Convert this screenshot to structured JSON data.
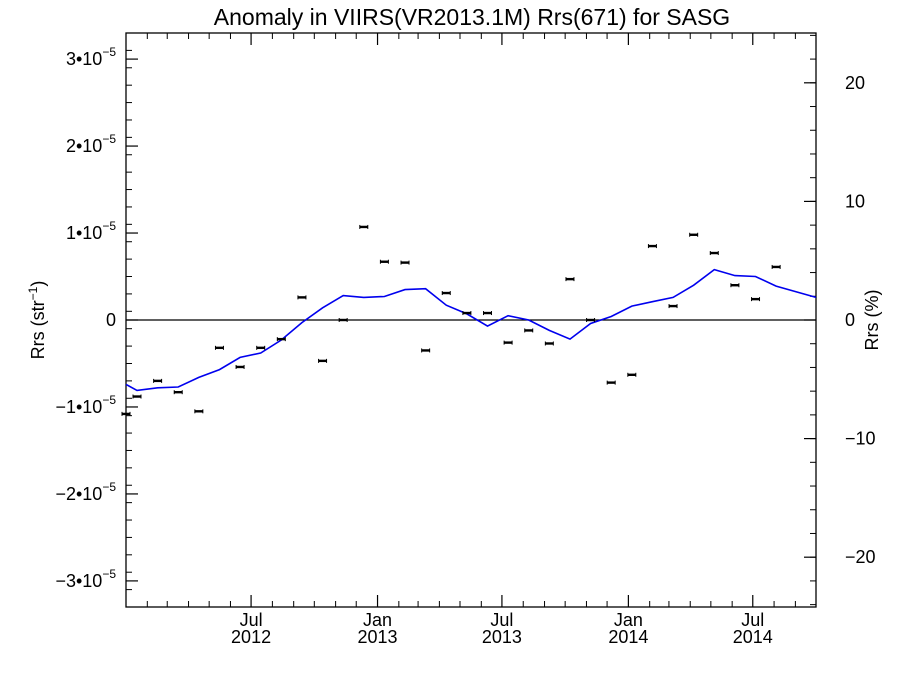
{
  "chart_data": {
    "type": "scatter",
    "title": "Anomaly in VIIRS(VR2013.1M) Rrs(671) for SASG",
    "ylabel_left": {
      "main": "Rrs (str",
      "sup": "−1",
      "close": ")"
    },
    "ylabel_right": "Rrs (%)",
    "xlim": [
      "2012-01-01",
      "2014-10-01"
    ],
    "ylim_left": [
      -3.3e-05,
      3.3e-05
    ],
    "ylim_right": [
      -24.2,
      24.2
    ],
    "x_ticks": [
      {
        "date": "2012-07-01",
        "month": "Jul",
        "year": "2012"
      },
      {
        "date": "2013-01-01",
        "month": "Jan",
        "year": "2013"
      },
      {
        "date": "2013-07-01",
        "month": "Jul",
        "year": "2013"
      },
      {
        "date": "2014-01-01",
        "month": "Jan",
        "year": "2014"
      },
      {
        "date": "2014-07-01",
        "month": "Jul",
        "year": "2014"
      }
    ],
    "x_minor_ticks": [
      "2012-02-01",
      "2012-03-01",
      "2012-04-01",
      "2012-05-01",
      "2012-06-01",
      "2012-08-01",
      "2012-09-01",
      "2012-10-01",
      "2012-11-01",
      "2012-12-01",
      "2013-02-01",
      "2013-03-01",
      "2013-04-01",
      "2013-05-01",
      "2013-06-01",
      "2013-08-01",
      "2013-09-01",
      "2013-10-01",
      "2013-11-01",
      "2013-12-01",
      "2014-02-01",
      "2014-03-01",
      "2014-04-01",
      "2014-05-01",
      "2014-06-01",
      "2014-08-01",
      "2014-09-01"
    ],
    "y_ticks_left": [
      {
        "value": 3e-05,
        "coef": "3•10",
        "exp": "−5"
      },
      {
        "value": 2e-05,
        "coef": "2•10",
        "exp": "−5"
      },
      {
        "value": 1e-05,
        "coef": "1•10",
        "exp": "−5"
      },
      {
        "value": 0,
        "coef": "0",
        "exp": ""
      },
      {
        "value": -1e-05,
        "coef": "−1•10",
        "exp": "−5"
      },
      {
        "value": -2e-05,
        "coef": "−2•10",
        "exp": "−5"
      },
      {
        "value": -3e-05,
        "coef": "−3•10",
        "exp": "−5"
      }
    ],
    "y_ticks_right": [
      {
        "value": 20,
        "label": "20"
      },
      {
        "value": 10,
        "label": "10"
      },
      {
        "value": 0,
        "label": "0"
      },
      {
        "value": -10,
        "label": "−10"
      },
      {
        "value": -20,
        "label": "−20"
      }
    ],
    "zero_line": 0,
    "grid": false,
    "legend": "none",
    "colors": {
      "points": "#000000",
      "trend": "#0000ee",
      "axes": "#000000",
      "zero_line": "#000000"
    },
    "series": [
      {
        "type": "scatter_errorbar",
        "points": [
          {
            "x": "2012-01-01",
            "y": -1.08e-05
          },
          {
            "x": "2012-01-17",
            "y": -8.8e-06
          },
          {
            "x": "2012-02-16",
            "y": -7e-06
          },
          {
            "x": "2012-03-17",
            "y": -8.3e-06
          },
          {
            "x": "2012-04-16",
            "y": -1.05e-05
          },
          {
            "x": "2012-05-16",
            "y": -3.2e-06
          },
          {
            "x": "2012-06-15",
            "y": -5.4e-06
          },
          {
            "x": "2012-07-15",
            "y": -3.2e-06
          },
          {
            "x": "2012-08-14",
            "y": -2.2e-06
          },
          {
            "x": "2012-09-13",
            "y": 2.6e-06
          },
          {
            "x": "2012-10-13",
            "y": -4.7e-06
          },
          {
            "x": "2012-11-12",
            "y": 0.0
          },
          {
            "x": "2012-12-12",
            "y": 1.07e-05
          },
          {
            "x": "2013-01-11",
            "y": 6.7e-06
          },
          {
            "x": "2013-02-10",
            "y": 6.6e-06
          },
          {
            "x": "2013-03-12",
            "y": -3.5e-06
          },
          {
            "x": "2013-04-11",
            "y": 3.1e-06
          },
          {
            "x": "2013-05-11",
            "y": 8e-07
          },
          {
            "x": "2013-06-10",
            "y": 8e-07
          },
          {
            "x": "2013-07-10",
            "y": -2.6e-06
          },
          {
            "x": "2013-08-09",
            "y": -1.2e-06
          },
          {
            "x": "2013-09-08",
            "y": -2.7e-06
          },
          {
            "x": "2013-10-08",
            "y": 4.7e-06
          },
          {
            "x": "2013-11-07",
            "y": 0.0
          },
          {
            "x": "2013-12-07",
            "y": -7.2e-06
          },
          {
            "x": "2014-01-06",
            "y": -6.3e-06
          },
          {
            "x": "2014-02-05",
            "y": 8.5e-06
          },
          {
            "x": "2014-03-07",
            "y": 1.6e-06
          },
          {
            "x": "2014-04-06",
            "y": 9.8e-06
          },
          {
            "x": "2014-05-06",
            "y": 7.7e-06
          },
          {
            "x": "2014-06-05",
            "y": 4e-06
          },
          {
            "x": "2014-07-05",
            "y": 2.4e-06
          },
          {
            "x": "2014-08-04",
            "y": 6.1e-06
          }
        ]
      },
      {
        "type": "line",
        "points": [
          {
            "x": "2012-01-01",
            "y": -7.4e-06
          },
          {
            "x": "2012-01-17",
            "y": -8.1e-06
          },
          {
            "x": "2012-02-16",
            "y": -7.8e-06
          },
          {
            "x": "2012-03-17",
            "y": -7.7e-06
          },
          {
            "x": "2012-04-16",
            "y": -6.6e-06
          },
          {
            "x": "2012-05-16",
            "y": -5.7e-06
          },
          {
            "x": "2012-06-15",
            "y": -4.3e-06
          },
          {
            "x": "2012-07-15",
            "y": -3.8e-06
          },
          {
            "x": "2012-08-14",
            "y": -2.3e-06
          },
          {
            "x": "2012-09-13",
            "y": -3e-07
          },
          {
            "x": "2012-10-13",
            "y": 1.4e-06
          },
          {
            "x": "2012-11-12",
            "y": 2.8e-06
          },
          {
            "x": "2012-12-12",
            "y": 2.6e-06
          },
          {
            "x": "2013-01-11",
            "y": 2.7e-06
          },
          {
            "x": "2013-02-10",
            "y": 3.5e-06
          },
          {
            "x": "2013-03-12",
            "y": 3.6e-06
          },
          {
            "x": "2013-04-11",
            "y": 1.7e-06
          },
          {
            "x": "2013-05-11",
            "y": 7e-07
          },
          {
            "x": "2013-06-10",
            "y": -7e-07
          },
          {
            "x": "2013-07-10",
            "y": 5e-07
          },
          {
            "x": "2013-08-09",
            "y": 0.0
          },
          {
            "x": "2013-09-08",
            "y": -1.2e-06
          },
          {
            "x": "2013-10-08",
            "y": -2.2e-06
          },
          {
            "x": "2013-11-07",
            "y": -4e-07
          },
          {
            "x": "2013-12-07",
            "y": 4e-07
          },
          {
            "x": "2014-01-06",
            "y": 1.6e-06
          },
          {
            "x": "2014-02-05",
            "y": 2.1e-06
          },
          {
            "x": "2014-03-07",
            "y": 2.6e-06
          },
          {
            "x": "2014-04-06",
            "y": 4e-06
          },
          {
            "x": "2014-05-06",
            "y": 5.8e-06
          },
          {
            "x": "2014-06-05",
            "y": 5.1e-06
          },
          {
            "x": "2014-07-05",
            "y": 5e-06
          },
          {
            "x": "2014-08-04",
            "y": 3.9e-06
          },
          {
            "x": "2014-10-01",
            "y": 2.6e-06
          }
        ]
      }
    ]
  }
}
